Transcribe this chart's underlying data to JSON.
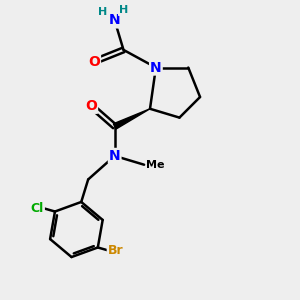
{
  "background_color": "#eeeeee",
  "bond_color": "#000000",
  "bond_width": 1.8,
  "atom_colors": {
    "N": "#0000ff",
    "O": "#ff0000",
    "Cl": "#00aa00",
    "Br": "#cc8800",
    "H": "#008888",
    "C": "#000000"
  },
  "font_size_atoms": 10,
  "font_size_small": 9
}
